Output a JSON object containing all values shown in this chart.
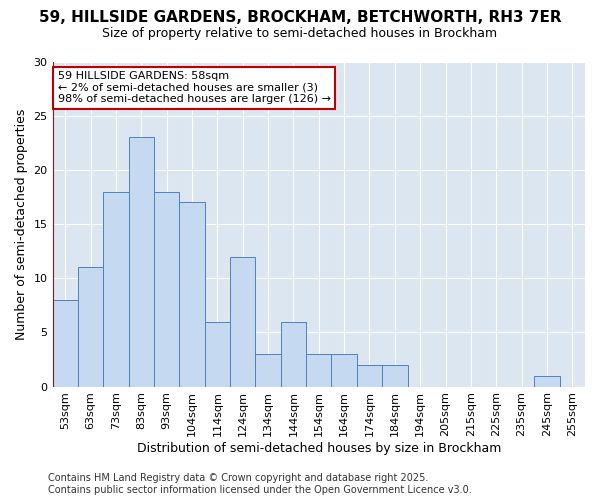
{
  "title1": "59, HILLSIDE GARDENS, BROCKHAM, BETCHWORTH, RH3 7ER",
  "title2": "Size of property relative to semi-detached houses in Brockham",
  "xlabel": "Distribution of semi-detached houses by size in Brockham",
  "ylabel": "Number of semi-detached properties",
  "categories": [
    "53sqm",
    "63sqm",
    "73sqm",
    "83sqm",
    "93sqm",
    "104sqm",
    "114sqm",
    "124sqm",
    "134sqm",
    "144sqm",
    "154sqm",
    "164sqm",
    "174sqm",
    "184sqm",
    "194sqm",
    "205sqm",
    "215sqm",
    "225sqm",
    "235sqm",
    "245sqm",
    "255sqm"
  ],
  "values": [
    8,
    11,
    18,
    23,
    18,
    17,
    6,
    12,
    3,
    6,
    3,
    3,
    2,
    2,
    0,
    0,
    0,
    0,
    0,
    1,
    0
  ],
  "bar_color": "#c5d9f1",
  "bar_edge_color": "#4f81bd",
  "highlight_color": "#c00000",
  "ylim": [
    0,
    30
  ],
  "yticks": [
    0,
    5,
    10,
    15,
    20,
    25,
    30
  ],
  "annotation_title": "59 HILLSIDE GARDENS: 58sqm",
  "annotation_line1": "← 2% of semi-detached houses are smaller (3)",
  "annotation_line2": "98% of semi-detached houses are larger (126) →",
  "footer1": "Contains HM Land Registry data © Crown copyright and database right 2025.",
  "footer2": "Contains public sector information licensed under the Open Government Licence v3.0.",
  "fig_bg_color": "#ffffff",
  "plot_bg_color": "#dce6f1",
  "title1_fontsize": 11,
  "title2_fontsize": 9,
  "label_fontsize": 9,
  "tick_fontsize": 8,
  "footer_fontsize": 7,
  "ann_fontsize": 8
}
